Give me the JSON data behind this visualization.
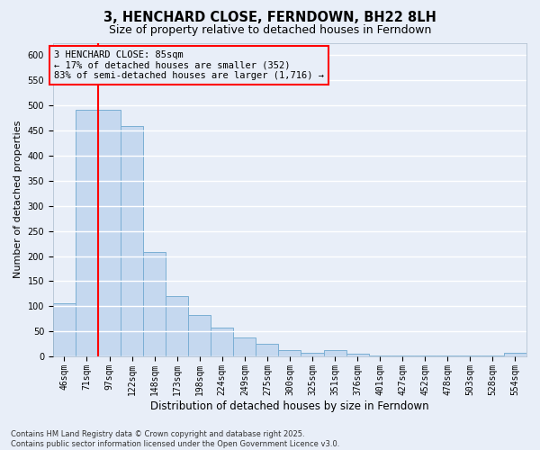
{
  "title": "3, HENCHARD CLOSE, FERNDOWN, BH22 8LH",
  "subtitle": "Size of property relative to detached houses in Ferndown",
  "xlabel": "Distribution of detached houses by size in Ferndown",
  "ylabel": "Number of detached properties",
  "categories": [
    "46sqm",
    "71sqm",
    "97sqm",
    "122sqm",
    "148sqm",
    "173sqm",
    "198sqm",
    "224sqm",
    "249sqm",
    "275sqm",
    "300sqm",
    "325sqm",
    "351sqm",
    "376sqm",
    "401sqm",
    "427sqm",
    "452sqm",
    "478sqm",
    "503sqm",
    "528sqm",
    "554sqm"
  ],
  "values": [
    105,
    492,
    492,
    460,
    208,
    120,
    83,
    57,
    38,
    25,
    13,
    8,
    13,
    5,
    2,
    1,
    1,
    1,
    1,
    1,
    7
  ],
  "bar_color": "#c5d8ef",
  "bar_edge_color": "#7bafd4",
  "vline_x": 1.5,
  "vline_color": "red",
  "annotation_text": "3 HENCHARD CLOSE: 85sqm\n← 17% of detached houses are smaller (352)\n83% of semi-detached houses are larger (1,716) →",
  "annotation_box_color": "red",
  "ylim": [
    0,
    625
  ],
  "yticks": [
    0,
    50,
    100,
    150,
    200,
    250,
    300,
    350,
    400,
    450,
    500,
    550,
    600
  ],
  "footnote": "Contains HM Land Registry data © Crown copyright and database right 2025.\nContains public sector information licensed under the Open Government Licence v3.0.",
  "bg_color": "#e8eef8",
  "grid_color": "#ffffff",
  "title_fontsize": 10.5,
  "subtitle_fontsize": 9,
  "axis_label_fontsize": 8,
  "tick_fontsize": 7,
  "annotation_fontsize": 7.5,
  "footnote_fontsize": 6
}
